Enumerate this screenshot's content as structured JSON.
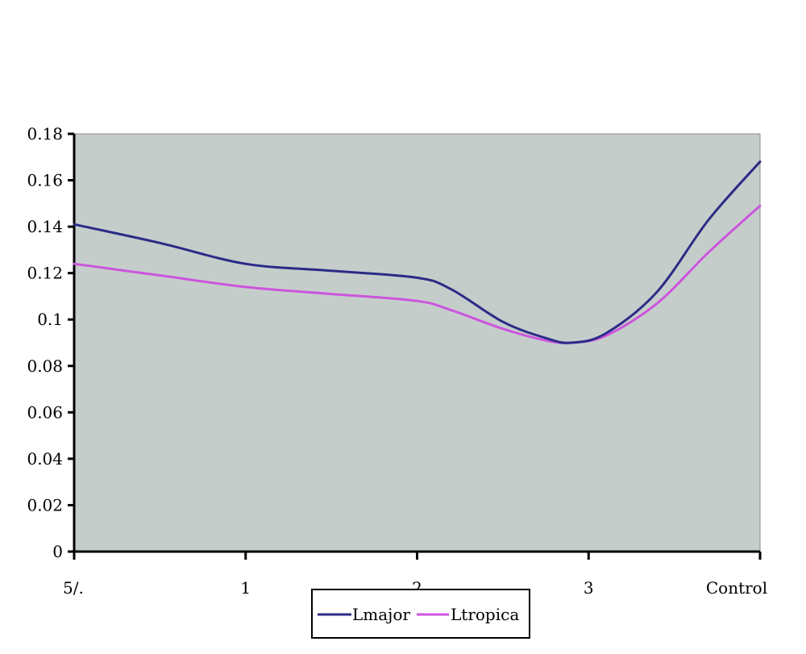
{
  "chart_data": {
    "type": "line",
    "title": "",
    "xlabel": "",
    "ylabel": "",
    "categories": [
      "5/.",
      "1",
      "2",
      "3",
      "Control"
    ],
    "ylim": [
      0,
      0.18
    ],
    "yticks": [
      "0",
      "0.02",
      "0.04",
      "0.06",
      "0.08",
      "0.1",
      "0.12",
      "0.14",
      "0.16",
      "0.18"
    ],
    "grid": false,
    "legend_position": "bottom",
    "plot_background": "#c5cdcb",
    "series": [
      {
        "name": "Lmajor",
        "color": "#2b2b86",
        "x": [
          0,
          0.5,
          1,
          1.5,
          2,
          2.2,
          2.5,
          2.75,
          2.9,
          3.1,
          3.4,
          3.7,
          4
        ],
        "values": [
          0.141,
          0.133,
          0.124,
          0.121,
          0.118,
          0.113,
          0.099,
          0.092,
          0.09,
          0.094,
          0.112,
          0.143,
          0.168
        ]
      },
      {
        "name": "Ltropica",
        "color": "#cc55dd",
        "x": [
          0,
          0.5,
          1,
          1.5,
          2,
          2.2,
          2.5,
          2.75,
          2.9,
          3.1,
          3.4,
          3.7,
          4
        ],
        "values": [
          0.124,
          0.119,
          0.114,
          0.111,
          0.108,
          0.104,
          0.096,
          0.091,
          0.09,
          0.093,
          0.107,
          0.129,
          0.149
        ]
      }
    ]
  }
}
